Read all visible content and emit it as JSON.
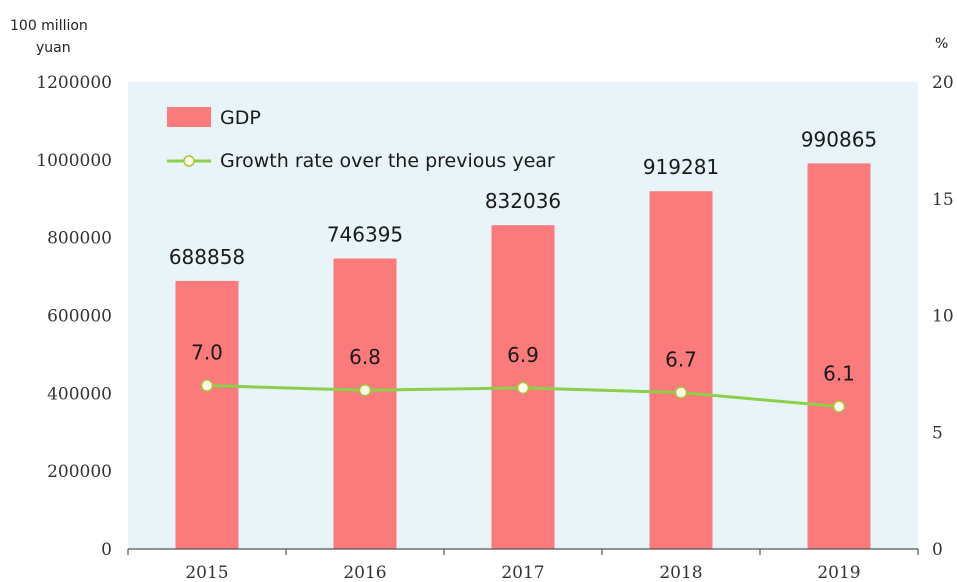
{
  "chart_data": {
    "type": "bar",
    "categories": [
      "2015",
      "2016",
      "2017",
      "2018",
      "2019"
    ],
    "series": [
      {
        "name": "GDP",
        "type": "bar",
        "axis": "left",
        "values": [
          688858,
          746395,
          832036,
          919281,
          990865
        ]
      },
      {
        "name": "Growth rate over the previous year",
        "type": "line",
        "axis": "right",
        "values": [
          7.0,
          6.8,
          6.9,
          6.7,
          6.1
        ]
      }
    ],
    "left_axis": {
      "unit": "100 million yuan",
      "unit_lines": [
        "100 million",
        "yuan"
      ],
      "ylim": [
        0,
        1200000
      ],
      "ticks": [
        "0",
        "200000",
        "400000",
        "600000",
        "800000",
        "1000000",
        "1200000"
      ]
    },
    "right_axis": {
      "unit": "%",
      "ylim": [
        0,
        20
      ],
      "ticks": [
        "0",
        "5",
        "10",
        "15",
        "20"
      ]
    },
    "bar_labels": [
      "688858",
      "746395",
      "832036",
      "919281",
      "990865"
    ],
    "rate_labels": [
      "7.0",
      "6.8",
      "6.9",
      "6.7",
      "6.1"
    ],
    "legend": {
      "position": "top-left",
      "entries": [
        "GDP",
        "Growth rate over the previous year"
      ]
    },
    "colors": {
      "bar": "#fb7a7c",
      "line": "#8bd04a",
      "marker_fill": "#fffbe8",
      "marker_stroke": "#a8c43a",
      "plot_bg": "#e8f4f8"
    },
    "grid": false
  }
}
